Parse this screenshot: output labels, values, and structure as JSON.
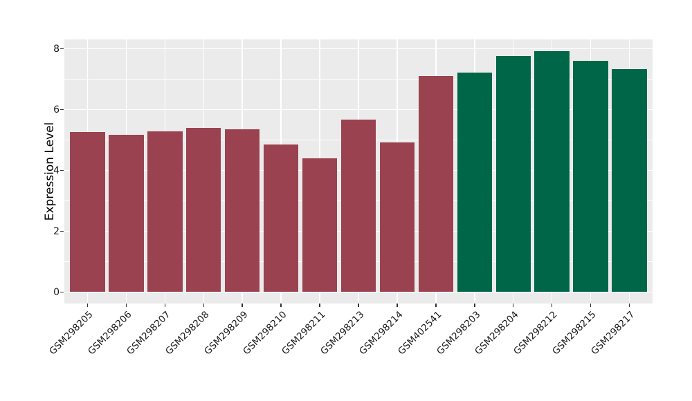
{
  "figure": {
    "background": "#FFFFFF",
    "panel_background": "#EBEBEB",
    "grid_color": "#FFFFFF",
    "axis_text_color": "#1a1a1a",
    "tick_mark_color": "#333333"
  },
  "chart_data": {
    "type": "bar",
    "title": "",
    "xlabel": "",
    "ylabel": "Expression Level",
    "categories": [
      "GSM298205",
      "GSM298206",
      "GSM298207",
      "GSM298208",
      "GSM298209",
      "GSM298210",
      "GSM298211",
      "GSM298213",
      "GSM298214",
      "GSM402541",
      "GSM298203",
      "GSM298204",
      "GSM298212",
      "GSM298215",
      "GSM298217"
    ],
    "values": [
      5.27,
      5.18,
      5.29,
      5.4,
      5.35,
      4.86,
      4.4,
      5.67,
      4.92,
      7.1,
      7.21,
      7.77,
      7.93,
      7.6,
      7.34
    ],
    "bar_colors": [
      "#9A424F",
      "#9A424F",
      "#9A424F",
      "#9A424F",
      "#9A424F",
      "#9A424F",
      "#9A424F",
      "#9A424F",
      "#9A424F",
      "#9A424F",
      "#006648",
      "#006648",
      "#006648",
      "#006648",
      "#006648"
    ],
    "color_red_group": "#9A424F",
    "color_green_group": "#006648",
    "y_ticks": [
      0,
      2,
      4,
      6,
      8
    ],
    "y_tick_labels": [
      "0",
      "2",
      "4",
      "6",
      "8"
    ],
    "y_minor_ticks": [
      1,
      3,
      5,
      7
    ],
    "ylim": [
      0,
      8.3
    ],
    "bar_width_fraction": 0.9,
    "x_tick_rotation": 45,
    "grid": true,
    "legend_position": "none"
  }
}
